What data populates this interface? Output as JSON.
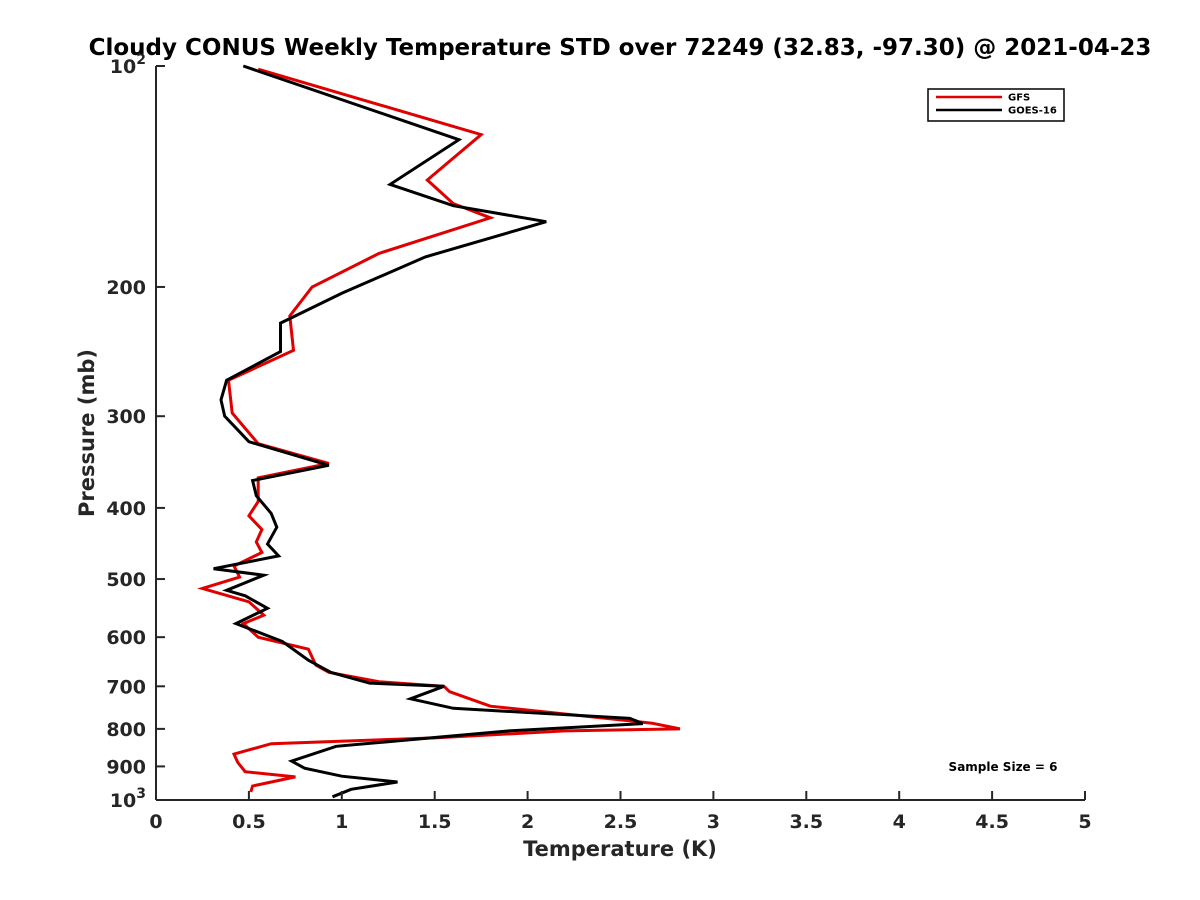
{
  "chart_data": {
    "type": "line",
    "title": "Cloudy CONUS Weekly Temperature STD over 72249 (32.83, -97.30) @ 2021-04-23",
    "xlabel": "Temperature (K)",
    "ylabel": "Pressure (mb)",
    "xlim": [
      0,
      5
    ],
    "ylim": [
      100,
      1000
    ],
    "y_scale": "log",
    "y_reversed": true,
    "grid": false,
    "x_ticks": [
      0,
      0.5,
      1,
      1.5,
      2,
      2.5,
      3,
      3.5,
      4,
      4.5,
      5
    ],
    "x_tick_labels": [
      "0",
      "0.5",
      "1",
      "1.5",
      "2",
      "2.5",
      "3",
      "3.5",
      "4",
      "4.5",
      "5"
    ],
    "y_ticks": [
      100,
      200,
      300,
      400,
      500,
      600,
      700,
      800,
      900,
      1000
    ],
    "y_tick_labels": [
      {
        "text": "10",
        "sup": "2"
      },
      {
        "text": "200",
        "sup": ""
      },
      {
        "text": "300",
        "sup": ""
      },
      {
        "text": "400",
        "sup": ""
      },
      {
        "text": "500",
        "sup": ""
      },
      {
        "text": "600",
        "sup": ""
      },
      {
        "text": "700",
        "sup": ""
      },
      {
        "text": "800",
        "sup": ""
      },
      {
        "text": "900",
        "sup": ""
      },
      {
        "text": "10",
        "sup": "3"
      }
    ],
    "legend_position": "top-right",
    "annotation": "Sample Size = 6",
    "series": [
      {
        "name": "GFS",
        "color": "#e00000",
        "x": [
          0.55,
          1.75,
          1.46,
          1.6,
          1.8,
          1.2,
          0.84,
          0.72,
          0.74,
          0.39,
          0.41,
          0.55,
          0.93,
          0.55,
          0.55,
          0.5,
          0.57,
          0.54,
          0.57,
          0.42,
          0.45,
          0.25,
          0.5,
          0.58,
          0.47,
          0.55,
          0.82,
          0.86,
          0.93,
          1.2,
          1.55,
          1.58,
          1.8,
          2.67,
          2.82,
          2.2,
          1.5,
          0.62,
          0.42,
          0.44,
          0.48,
          0.75,
          0.52,
          0.51
        ],
        "y": [
          101,
          124,
          143,
          154,
          161,
          180,
          200,
          219,
          244,
          268,
          297,
          327,
          348,
          364,
          392,
          410,
          428,
          445,
          460,
          480,
          497,
          515,
          537,
          560,
          575,
          600,
          623,
          655,
          670,
          690,
          700,
          712,
          745,
          786,
          800,
          805,
          823,
          838,
          866,
          889,
          915,
          930,
          957,
          975
        ]
      },
      {
        "name": "GOES-16",
        "color": "#000000",
        "x": [
          0.47,
          1.63,
          1.26,
          1.6,
          2.1,
          1.45,
          1.0,
          0.67,
          0.67,
          0.38,
          0.35,
          0.37,
          0.5,
          0.93,
          0.52,
          0.54,
          0.62,
          0.65,
          0.6,
          0.66,
          0.31,
          0.58,
          0.38,
          0.48,
          0.6,
          0.43,
          0.68,
          0.82,
          0.94,
          1.15,
          1.55,
          1.37,
          1.6,
          2.55,
          2.62,
          1.9,
          0.97,
          0.73,
          0.8,
          1.0,
          1.3,
          1.05,
          0.95
        ],
        "y": [
          100,
          126,
          145,
          155,
          163,
          182,
          204,
          224,
          245,
          268,
          285,
          300,
          325,
          350,
          367,
          385,
          407,
          425,
          448,
          465,
          484,
          494,
          518,
          527,
          548,
          575,
          608,
          645,
          670,
          693,
          700,
          728,
          750,
          774,
          787,
          805,
          845,
          885,
          905,
          928,
          945,
          967,
          990
        ]
      }
    ]
  }
}
